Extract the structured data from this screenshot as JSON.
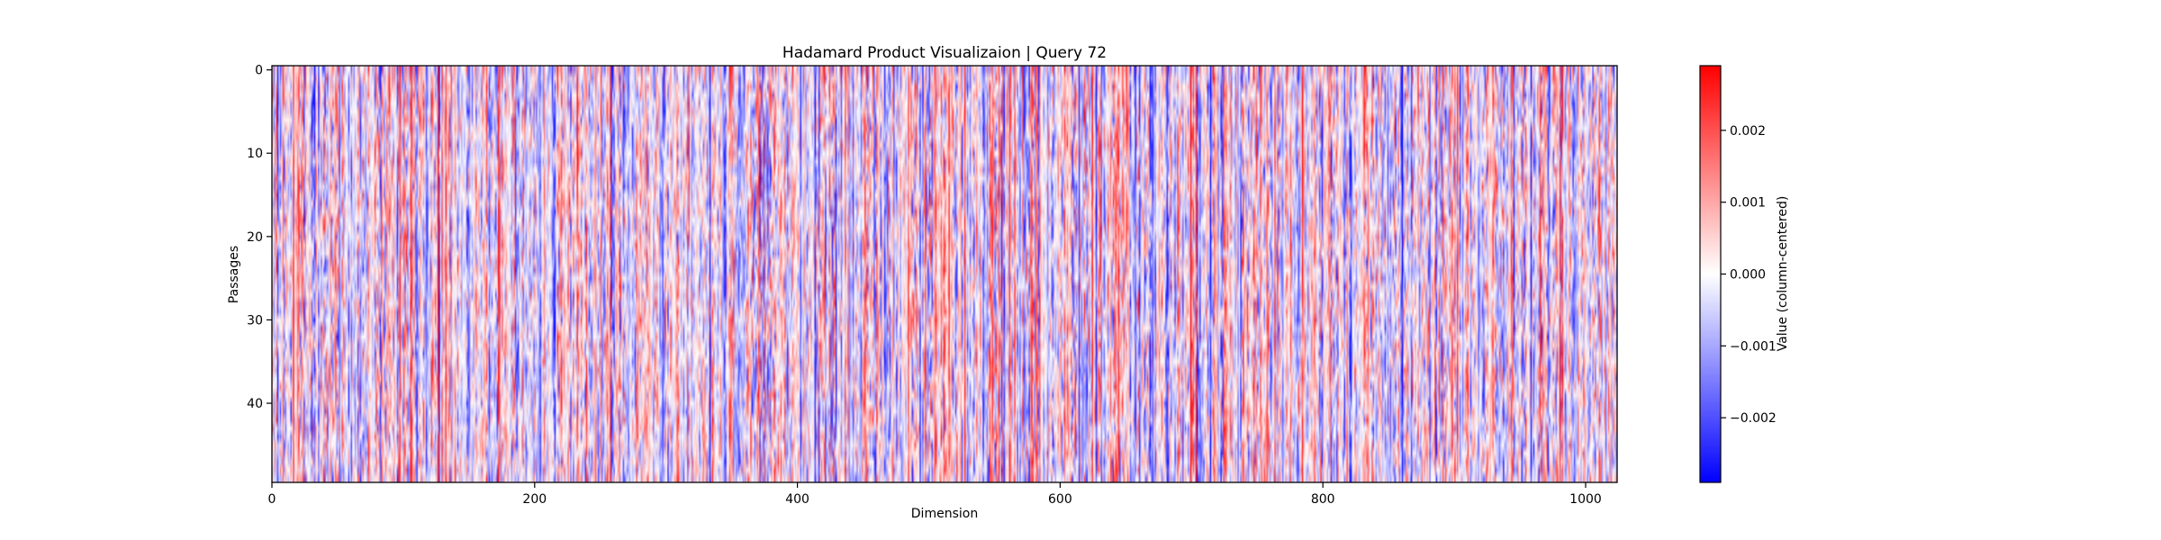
{
  "chart_data": {
    "type": "heatmap",
    "title": "Hadamard Product Visualizaion | Query 72",
    "xlabel": "Dimension",
    "ylabel": "Passages",
    "xlim": [
      0,
      1024
    ],
    "ylim": [
      0,
      50
    ],
    "x_ticks": [
      0,
      200,
      400,
      600,
      800,
      1000
    ],
    "y_ticks": [
      0,
      10,
      20,
      30,
      40
    ],
    "colormap": "bwr",
    "colors": {
      "low": "#0000ff",
      "mid": "#ffffff",
      "high": "#ff0000"
    },
    "colorbar": {
      "label": "Value (column-centered)",
      "range": [
        -0.0029,
        0.0029
      ],
      "ticks": [
        -0.002,
        -0.001,
        0.0,
        0.001,
        0.002
      ],
      "tick_labels": [
        "−0.002",
        "−0.001",
        "0.000",
        "0.001",
        "0.002"
      ]
    },
    "grid": false,
    "n_rows": 50,
    "n_cols": 1024
  }
}
